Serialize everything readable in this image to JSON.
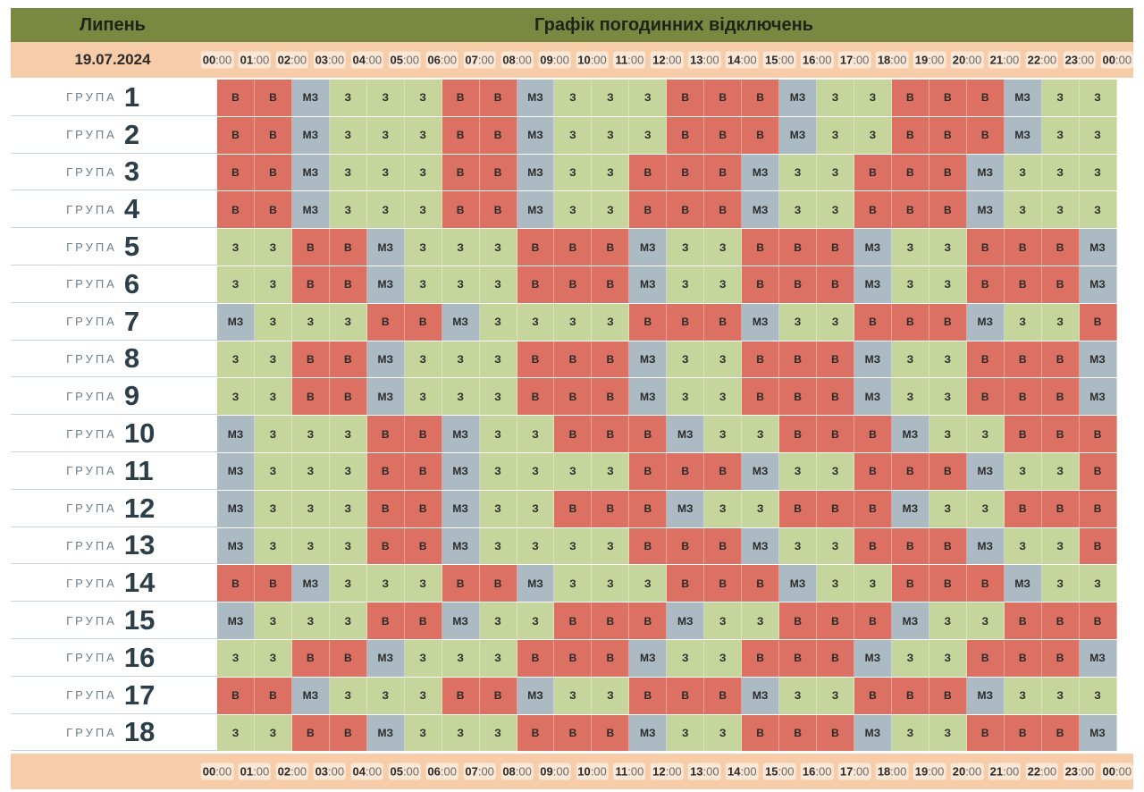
{
  "header": {
    "month": "Липень",
    "title": "Графік погодинних відключень"
  },
  "date": "19.07.2024",
  "group_label": "ГРУПА",
  "hours": [
    {
      "h": "00",
      "m": ":00"
    },
    {
      "h": "01",
      "m": ":00"
    },
    {
      "h": "02",
      "m": ":00"
    },
    {
      "h": "03",
      "m": ":00"
    },
    {
      "h": "04",
      "m": ":00"
    },
    {
      "h": "05",
      "m": ":00"
    },
    {
      "h": "06",
      "m": ":00"
    },
    {
      "h": "07",
      "m": ":00"
    },
    {
      "h": "08",
      "m": ":00"
    },
    {
      "h": "09",
      "m": ":00"
    },
    {
      "h": "10",
      "m": ":00"
    },
    {
      "h": "11",
      "m": ":00"
    },
    {
      "h": "12",
      "m": ":00"
    },
    {
      "h": "13",
      "m": ":00"
    },
    {
      "h": "14",
      "m": ":00"
    },
    {
      "h": "15",
      "m": ":00"
    },
    {
      "h": "16",
      "m": ":00"
    },
    {
      "h": "17",
      "m": ":00"
    },
    {
      "h": "18",
      "m": ":00"
    },
    {
      "h": "19",
      "m": ":00"
    },
    {
      "h": "20",
      "m": ":00"
    },
    {
      "h": "21",
      "m": ":00"
    },
    {
      "h": "22",
      "m": ":00"
    },
    {
      "h": "23",
      "m": ":00"
    },
    {
      "h": "00",
      "m": ":00"
    }
  ],
  "colors": {
    "В": "#dc7062",
    "З": "#c5d59c",
    "МЗ": "#acbac3",
    "header": "#798942",
    "hourbar": "#f7cda9"
  },
  "groups": [
    {
      "num": "1",
      "slots": [
        "В",
        "В",
        "МЗ",
        "З",
        "З",
        "З",
        "В",
        "В",
        "МЗ",
        "З",
        "З",
        "З",
        "В",
        "В",
        "В",
        "МЗ",
        "З",
        "З",
        "В",
        "В",
        "В",
        "МЗ",
        "З",
        "З"
      ]
    },
    {
      "num": "2",
      "slots": [
        "В",
        "В",
        "МЗ",
        "З",
        "З",
        "З",
        "В",
        "В",
        "МЗ",
        "З",
        "З",
        "З",
        "В",
        "В",
        "В",
        "МЗ",
        "З",
        "З",
        "В",
        "В",
        "В",
        "МЗ",
        "З",
        "З"
      ]
    },
    {
      "num": "3",
      "slots": [
        "В",
        "В",
        "МЗ",
        "З",
        "З",
        "З",
        "В",
        "В",
        "МЗ",
        "З",
        "З",
        "В",
        "В",
        "В",
        "МЗ",
        "З",
        "З",
        "В",
        "В",
        "В",
        "МЗ",
        "З",
        "З",
        "З"
      ]
    },
    {
      "num": "4",
      "slots": [
        "В",
        "В",
        "МЗ",
        "З",
        "З",
        "З",
        "В",
        "В",
        "МЗ",
        "З",
        "З",
        "В",
        "В",
        "В",
        "МЗ",
        "З",
        "З",
        "В",
        "В",
        "В",
        "МЗ",
        "З",
        "З",
        "З"
      ]
    },
    {
      "num": "5",
      "slots": [
        "З",
        "З",
        "В",
        "В",
        "МЗ",
        "З",
        "З",
        "З",
        "В",
        "В",
        "В",
        "МЗ",
        "З",
        "З",
        "В",
        "В",
        "В",
        "МЗ",
        "З",
        "З",
        "В",
        "В",
        "В",
        "МЗ"
      ]
    },
    {
      "num": "6",
      "slots": [
        "З",
        "З",
        "В",
        "В",
        "МЗ",
        "З",
        "З",
        "З",
        "В",
        "В",
        "В",
        "МЗ",
        "З",
        "З",
        "В",
        "В",
        "В",
        "МЗ",
        "З",
        "З",
        "В",
        "В",
        "В",
        "МЗ"
      ]
    },
    {
      "num": "7",
      "slots": [
        "МЗ",
        "З",
        "З",
        "З",
        "В",
        "В",
        "МЗ",
        "З",
        "З",
        "З",
        "З",
        "В",
        "В",
        "В",
        "МЗ",
        "З",
        "З",
        "В",
        "В",
        "В",
        "МЗ",
        "З",
        "З",
        "В"
      ]
    },
    {
      "num": "8",
      "slots": [
        "З",
        "З",
        "В",
        "В",
        "МЗ",
        "З",
        "З",
        "З",
        "В",
        "В",
        "В",
        "МЗ",
        "З",
        "З",
        "В",
        "В",
        "В",
        "МЗ",
        "З",
        "З",
        "В",
        "В",
        "В",
        "МЗ"
      ]
    },
    {
      "num": "9",
      "slots": [
        "З",
        "З",
        "В",
        "В",
        "МЗ",
        "З",
        "З",
        "З",
        "В",
        "В",
        "В",
        "МЗ",
        "З",
        "З",
        "В",
        "В",
        "В",
        "МЗ",
        "З",
        "З",
        "В",
        "В",
        "В",
        "МЗ"
      ]
    },
    {
      "num": "10",
      "slots": [
        "МЗ",
        "З",
        "З",
        "З",
        "В",
        "В",
        "МЗ",
        "З",
        "З",
        "В",
        "В",
        "В",
        "МЗ",
        "З",
        "З",
        "В",
        "В",
        "В",
        "МЗ",
        "З",
        "З",
        "В",
        "В",
        "В"
      ]
    },
    {
      "num": "11",
      "slots": [
        "МЗ",
        "З",
        "З",
        "З",
        "В",
        "В",
        "МЗ",
        "З",
        "З",
        "З",
        "З",
        "В",
        "В",
        "В",
        "МЗ",
        "З",
        "З",
        "В",
        "В",
        "В",
        "МЗ",
        "З",
        "З",
        "В"
      ]
    },
    {
      "num": "12",
      "slots": [
        "МЗ",
        "З",
        "З",
        "З",
        "В",
        "В",
        "МЗ",
        "З",
        "З",
        "В",
        "В",
        "В",
        "МЗ",
        "З",
        "З",
        "В",
        "В",
        "В",
        "МЗ",
        "З",
        "З",
        "В",
        "В",
        "В"
      ]
    },
    {
      "num": "13",
      "slots": [
        "МЗ",
        "З",
        "З",
        "З",
        "В",
        "В",
        "МЗ",
        "З",
        "З",
        "З",
        "З",
        "В",
        "В",
        "В",
        "МЗ",
        "З",
        "З",
        "В",
        "В",
        "В",
        "МЗ",
        "З",
        "З",
        "В"
      ]
    },
    {
      "num": "14",
      "slots": [
        "В",
        "В",
        "МЗ",
        "З",
        "З",
        "З",
        "В",
        "В",
        "МЗ",
        "З",
        "З",
        "З",
        "В",
        "В",
        "В",
        "МЗ",
        "З",
        "З",
        "В",
        "В",
        "В",
        "МЗ",
        "З",
        "З"
      ]
    },
    {
      "num": "15",
      "slots": [
        "МЗ",
        "З",
        "З",
        "З",
        "В",
        "В",
        "МЗ",
        "З",
        "З",
        "В",
        "В",
        "В",
        "МЗ",
        "З",
        "З",
        "В",
        "В",
        "В",
        "МЗ",
        "З",
        "З",
        "В",
        "В",
        "В"
      ]
    },
    {
      "num": "16",
      "slots": [
        "З",
        "З",
        "В",
        "В",
        "МЗ",
        "З",
        "З",
        "З",
        "В",
        "В",
        "В",
        "МЗ",
        "З",
        "З",
        "В",
        "В",
        "В",
        "МЗ",
        "З",
        "З",
        "В",
        "В",
        "В",
        "МЗ"
      ]
    },
    {
      "num": "17",
      "slots": [
        "В",
        "В",
        "МЗ",
        "З",
        "З",
        "З",
        "В",
        "В",
        "МЗ",
        "З",
        "З",
        "В",
        "В",
        "В",
        "МЗ",
        "З",
        "З",
        "В",
        "В",
        "В",
        "МЗ",
        "З",
        "З",
        "З"
      ]
    },
    {
      "num": "18",
      "slots": [
        "З",
        "З",
        "В",
        "В",
        "МЗ",
        "З",
        "З",
        "З",
        "В",
        "В",
        "В",
        "МЗ",
        "З",
        "З",
        "В",
        "В",
        "В",
        "МЗ",
        "З",
        "З",
        "В",
        "В",
        "В",
        "МЗ"
      ]
    }
  ]
}
